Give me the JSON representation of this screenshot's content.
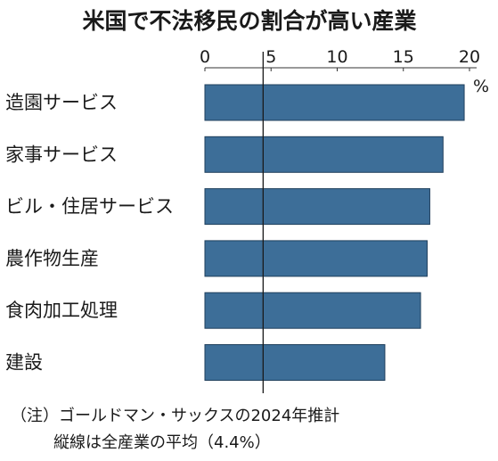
{
  "chart_data": {
    "type": "bar",
    "orientation": "horizontal",
    "title": "米国で不法移民の割合が高い産業",
    "unit": "%",
    "categories": [
      "造園サービス",
      "家事サービス",
      "ビル・住居サービス",
      "農作物生産",
      "食肉加工処理",
      "建設"
    ],
    "values": [
      19.6,
      18.0,
      17.0,
      16.8,
      16.3,
      13.6
    ],
    "xlim": [
      0,
      20
    ],
    "xticks": [
      0,
      5,
      10,
      15,
      20
    ],
    "reference_line": {
      "value": 4.4
    },
    "bar_color": "#3d6e98",
    "grid": false,
    "legend": "none",
    "notes": [
      "（注）ゴールドマン・サックスの2024年推計",
      "縦線は全産業の平均（4.4%）"
    ]
  }
}
